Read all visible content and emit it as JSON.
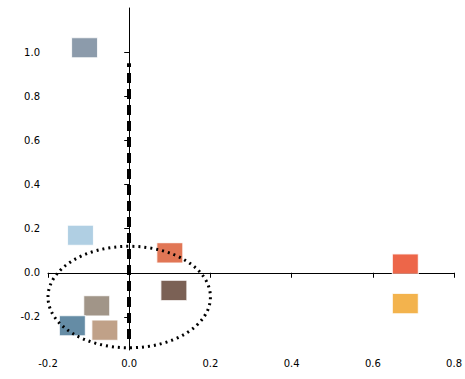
{
  "chart_data": {
    "type": "scatter",
    "x": [
      -0.11,
      -0.12,
      0.1,
      0.11,
      -0.08,
      -0.14,
      -0.06,
      0.68,
      0.68
    ],
    "values": [
      1.02,
      0.17,
      0.09,
      -0.08,
      -0.15,
      -0.24,
      -0.26,
      0.04,
      -0.14
    ],
    "colors": [
      "#6f8296",
      "#9cc3dc",
      "#d9542a",
      "#5a3a2a",
      "#8a7a6a",
      "#3f6f8f",
      "#b08a6a",
      "#e8401c",
      "#f0a020"
    ],
    "marker": "rect",
    "xlim": [
      -0.2,
      0.8
    ],
    "xticks": [
      -0.2,
      {
        "value": 0,
        "label": "0.0"
      },
      0.2,
      0.4,
      0.6,
      0.8
    ],
    "ylim": [
      -0.35,
      1.2
    ],
    "yticks": [
      -0.2,
      {
        "value": 0,
        "label": "0.0"
      },
      0.2,
      0.4,
      0.6,
      0.8,
      {
        "value": 1,
        "label": "1.0"
      }
    ],
    "grid": false,
    "vline": {
      "x": 0,
      "y": [
        -0.3,
        0.95
      ]
    },
    "ellipse": {
      "x": [
        -0.2,
        0.2
      ],
      "y": [
        -0.34,
        0.12
      ]
    }
  }
}
